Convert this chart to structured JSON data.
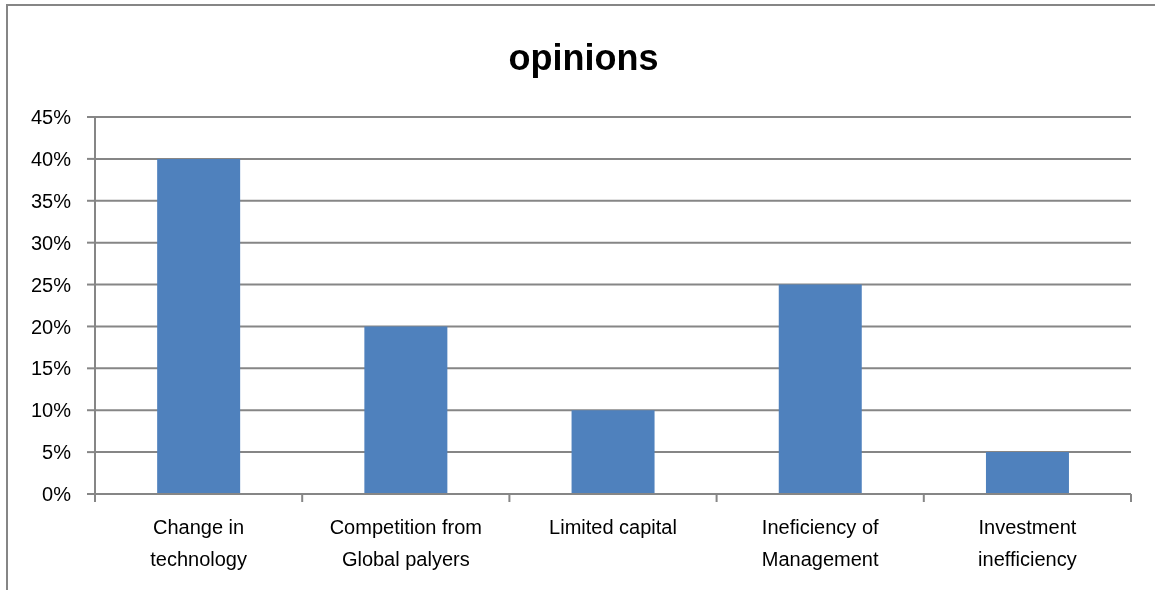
{
  "chart_data": {
    "type": "bar",
    "title": "opinions",
    "categories": [
      "Change in technology",
      "Competition from Global palyers",
      "Limited capital",
      "Ineficiency of Management",
      "Investment inefficiency"
    ],
    "values": [
      40,
      20,
      10,
      25,
      5
    ],
    "color": "#4f81bd",
    "ylim": [
      0,
      45
    ],
    "yticks": [
      {
        "value": 0,
        "label": "0%"
      },
      {
        "value": 5,
        "label": "5%"
      },
      {
        "value": 10,
        "label": "10%"
      },
      {
        "value": 15,
        "label": "15%"
      },
      {
        "value": 20,
        "label": "20%"
      },
      {
        "value": 25,
        "label": "25%"
      },
      {
        "value": 30,
        "label": "30%"
      },
      {
        "value": 35,
        "label": "35%"
      },
      {
        "value": 40,
        "label": "40%"
      },
      {
        "value": 45,
        "label": "45%"
      }
    ],
    "grid": "y"
  }
}
